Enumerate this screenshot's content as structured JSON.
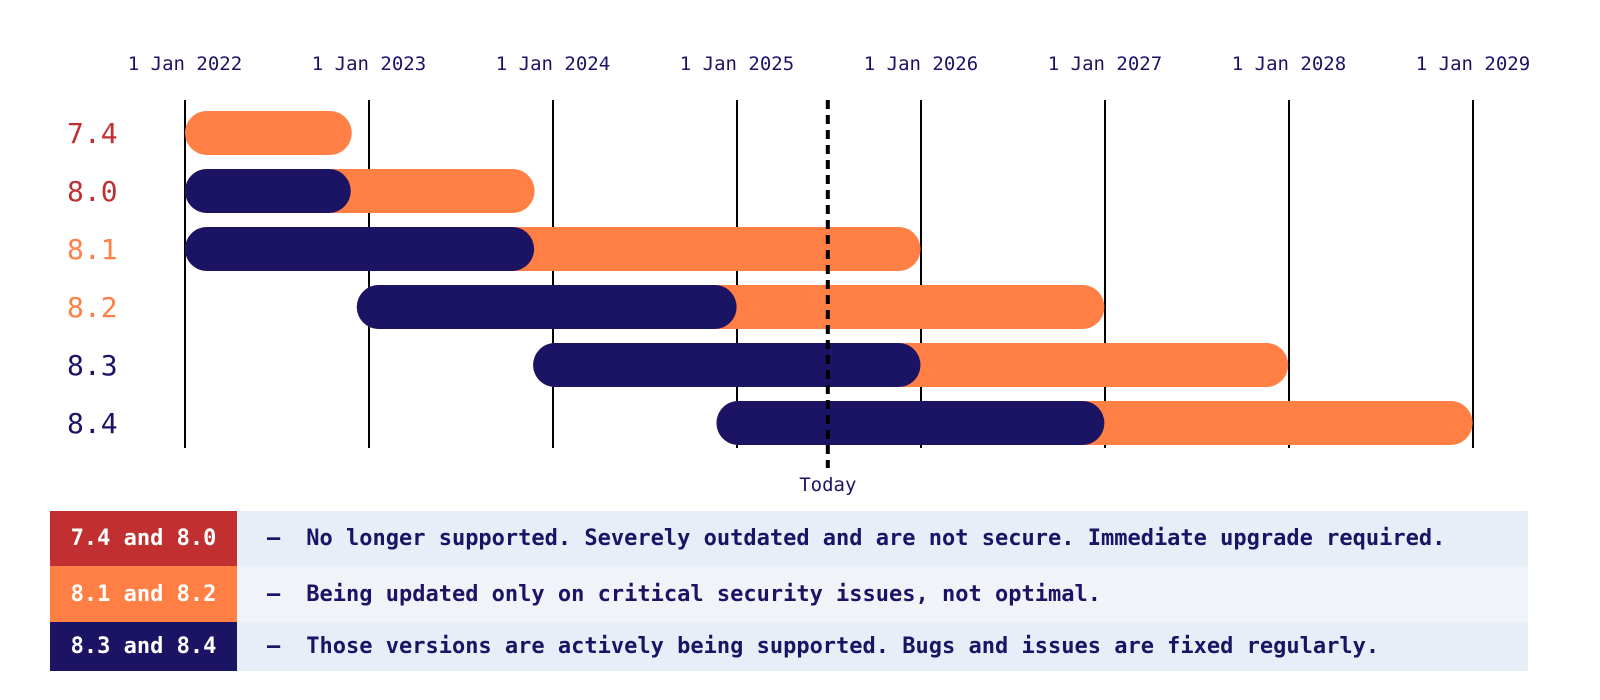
{
  "colors": {
    "eol": "#c22f31",
    "security": "#ff7f45",
    "active": "#1b1464",
    "grid": "#000000",
    "legend_bg_a": "#e8eef8",
    "legend_bg_b": "#f0f4f9"
  },
  "chart_data": {
    "type": "gantt",
    "x_axis": {
      "ticks": [
        "1 Jan 2022",
        "1 Jan 2023",
        "1 Jan 2024",
        "1 Jan 2025",
        "1 Jan 2026",
        "1 Jan 2027",
        "1 Jan 2028",
        "1 Jan 2029"
      ],
      "range": [
        "2022-01-01",
        "2029-01-01"
      ]
    },
    "today": {
      "label": "Today",
      "date": "2025-06-30"
    },
    "versions": [
      {
        "label": "7.4",
        "status": "eol",
        "active": null,
        "security": [
          "2022-01-01",
          "2022-11-28"
        ]
      },
      {
        "label": "8.0",
        "status": "eol",
        "active": [
          "2022-01-01",
          "2022-11-26"
        ],
        "security": [
          "2022-11-26",
          "2023-11-26"
        ]
      },
      {
        "label": "8.1",
        "status": "security",
        "active": [
          "2022-01-01",
          "2023-11-25"
        ],
        "security": [
          "2023-11-25",
          "2025-12-31"
        ]
      },
      {
        "label": "8.2",
        "status": "security",
        "active": [
          "2022-12-08",
          "2024-12-31"
        ],
        "security": [
          "2024-12-31",
          "2026-12-31"
        ]
      },
      {
        "label": "8.3",
        "status": "active",
        "active": [
          "2023-11-23",
          "2025-12-31"
        ],
        "security": [
          "2025-12-31",
          "2027-12-31"
        ]
      },
      {
        "label": "8.4",
        "status": "active",
        "active": [
          "2024-11-21",
          "2026-12-31"
        ],
        "security": [
          "2026-12-31",
          "2028-12-31"
        ]
      }
    ]
  },
  "legend": [
    {
      "key": "7.4 and 8.0",
      "status": "eol",
      "dash": "—",
      "text": "No longer supported. Severely outdated and are not secure. Immediate upgrade required."
    },
    {
      "key": "8.1 and 8.2",
      "status": "security",
      "dash": "—",
      "text": "Being updated only on critical security issues, not optimal."
    },
    {
      "key": "8.3 and 8.4",
      "status": "active",
      "dash": "—",
      "text": "Those versions are actively being supported. Bugs and issues are fixed regularly."
    }
  ]
}
